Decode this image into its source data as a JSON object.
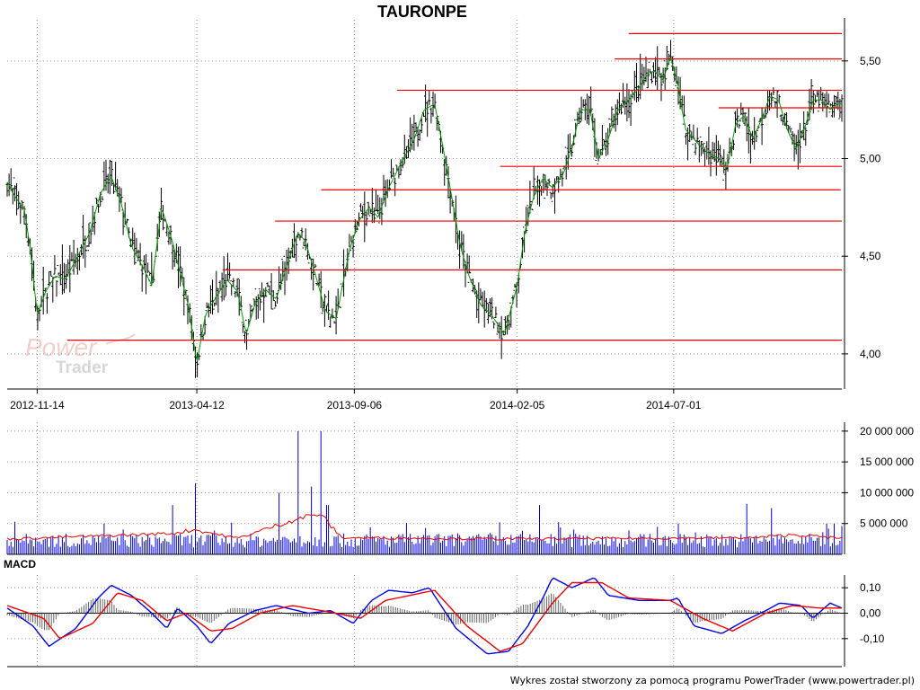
{
  "watermark": {
    "word1": "Power",
    "word2": "Trader"
  },
  "footer": "Wykres został stworzony za pomocą programu PowerTrader (www.powertrader.pl)",
  "chart_data": [
    {
      "type": "candlestick",
      "title": "TAURONPE",
      "x_tick_labels": [
        "2012-11-14",
        "2013-04-12",
        "2013-09-06",
        "2014-02-05",
        "2014-07-01"
      ],
      "x_range": [
        "2012-10-17",
        "2014-12-05"
      ],
      "y_tick_labels": [
        "4,00",
        "4,50",
        "5,00",
        "5,50"
      ],
      "y_ticks": [
        4.0,
        4.5,
        5.0,
        5.5
      ],
      "ylim": [
        3.82,
        5.72
      ],
      "grid": true,
      "close_path": [
        [
          "2012-10-17",
          4.88
        ],
        [
          "2012-10-25",
          4.8
        ],
        [
          "2012-11-02",
          4.74
        ],
        [
          "2012-11-08",
          4.52
        ],
        [
          "2012-11-14",
          4.2
        ],
        [
          "2012-11-22",
          4.32
        ],
        [
          "2012-12-01",
          4.4
        ],
        [
          "2012-12-10",
          4.38
        ],
        [
          "2012-12-20",
          4.48
        ],
        [
          "2013-01-02",
          4.62
        ],
        [
          "2013-01-12",
          4.82
        ],
        [
          "2013-01-22",
          4.91
        ],
        [
          "2013-02-01",
          4.76
        ],
        [
          "2013-02-10",
          4.55
        ],
        [
          "2013-02-20",
          4.45
        ],
        [
          "2013-03-01",
          4.35
        ],
        [
          "2013-03-10",
          4.75
        ],
        [
          "2013-03-20",
          4.58
        ],
        [
          "2013-03-28",
          4.4
        ],
        [
          "2013-04-04",
          4.25
        ],
        [
          "2013-04-12",
          3.95
        ],
        [
          "2013-04-20",
          4.2
        ],
        [
          "2013-05-01",
          4.3
        ],
        [
          "2013-05-10",
          4.38
        ],
        [
          "2013-05-20",
          4.32
        ],
        [
          "2013-05-28",
          4.1
        ],
        [
          "2013-06-05",
          4.25
        ],
        [
          "2013-06-15",
          4.33
        ],
        [
          "2013-06-25",
          4.28
        ],
        [
          "2013-07-05",
          4.45
        ],
        [
          "2013-07-15",
          4.62
        ],
        [
          "2013-07-22",
          4.58
        ],
        [
          "2013-08-01",
          4.4
        ],
        [
          "2013-08-10",
          4.22
        ],
        [
          "2013-08-20",
          4.18
        ],
        [
          "2013-09-01",
          4.52
        ],
        [
          "2013-09-10",
          4.68
        ],
        [
          "2013-09-20",
          4.75
        ],
        [
          "2013-09-28",
          4.7
        ],
        [
          "2013-10-08",
          4.85
        ],
        [
          "2013-10-20",
          4.98
        ],
        [
          "2013-11-01",
          5.1
        ],
        [
          "2013-11-10",
          5.25
        ],
        [
          "2013-11-20",
          5.28
        ],
        [
          "2013-11-28",
          5.05
        ],
        [
          "2013-12-06",
          4.8
        ],
        [
          "2013-12-14",
          4.55
        ],
        [
          "2013-12-22",
          4.4
        ],
        [
          "2014-01-02",
          4.25
        ],
        [
          "2014-01-12",
          4.2
        ],
        [
          "2014-01-24",
          4.1
        ],
        [
          "2014-02-05",
          4.35
        ],
        [
          "2014-02-12",
          4.62
        ],
        [
          "2014-02-20",
          4.8
        ],
        [
          "2014-03-01",
          4.9
        ],
        [
          "2014-03-10",
          4.85
        ],
        [
          "2014-03-20",
          4.92
        ],
        [
          "2014-03-28",
          5.05
        ],
        [
          "2014-04-05",
          5.25
        ],
        [
          "2014-04-14",
          5.25
        ],
        [
          "2014-04-22",
          5.0
        ],
        [
          "2014-05-01",
          5.1
        ],
        [
          "2014-05-10",
          5.25
        ],
        [
          "2014-05-20",
          5.3
        ],
        [
          "2014-05-28",
          5.35
        ],
        [
          "2014-06-05",
          5.42
        ],
        [
          "2014-06-13",
          5.45
        ],
        [
          "2014-06-21",
          5.4
        ],
        [
          "2014-06-28",
          5.52
        ],
        [
          "2014-07-05",
          5.38
        ],
        [
          "2014-07-12",
          5.15
        ],
        [
          "2014-07-20",
          5.1
        ],
        [
          "2014-07-28",
          5.05
        ],
        [
          "2014-08-05",
          5.02
        ],
        [
          "2014-08-12",
          5.0
        ],
        [
          "2014-08-20",
          4.95
        ],
        [
          "2014-08-28",
          5.18
        ],
        [
          "2014-09-05",
          5.22
        ],
        [
          "2014-09-13",
          5.1
        ],
        [
          "2014-09-21",
          5.2
        ],
        [
          "2014-09-29",
          5.32
        ],
        [
          "2014-10-07",
          5.3
        ],
        [
          "2014-10-15",
          5.15
        ],
        [
          "2014-10-23",
          5.05
        ],
        [
          "2014-10-31",
          5.15
        ],
        [
          "2014-11-08",
          5.3
        ],
        [
          "2014-11-16",
          5.3
        ],
        [
          "2014-11-24",
          5.25
        ],
        [
          "2014-12-01",
          5.28
        ],
        [
          "2014-12-05",
          5.28
        ]
      ],
      "support_resistance_lines": [
        {
          "from": "2012-12-12",
          "to": "2014-12-05",
          "y": 4.07
        },
        {
          "from": "2013-05-06",
          "to": "2014-12-05",
          "y": 4.43
        },
        {
          "from": "2013-06-24",
          "to": "2014-12-05",
          "y": 4.68
        },
        {
          "from": "2013-08-06",
          "to": "2014-12-04",
          "y": 4.84
        },
        {
          "from": "2013-10-16",
          "to": "2014-12-05",
          "y": 5.35
        },
        {
          "from": "2014-01-20",
          "to": "2014-12-05",
          "y": 4.96
        },
        {
          "from": "2014-05-07",
          "to": "2014-12-05",
          "y": 5.51
        },
        {
          "from": "2014-05-20",
          "to": "2014-12-05",
          "y": 5.64
        },
        {
          "from": "2014-08-12",
          "to": "2014-12-05",
          "y": 5.26
        }
      ],
      "colors": {
        "candles": "#000000",
        "close_line": "#009900",
        "levels": "#ee0000",
        "grid": "#9a9a9a"
      }
    },
    {
      "type": "bar",
      "name": "volume",
      "y_tick_labels": [
        "5 000 000",
        "10 000 000",
        "15 000 000",
        "20 000 000"
      ],
      "y_ticks": [
        5000000,
        10000000,
        15000000,
        20000000
      ],
      "ylim": [
        0,
        21000000
      ],
      "typical_volume": 2500000,
      "spikes": [
        [
          "2012-10-24",
          5300000
        ],
        [
          "2013-01-15",
          5000000
        ],
        [
          "2013-03-20",
          8000000
        ],
        [
          "2013-04-10",
          11500000
        ],
        [
          "2013-06-28",
          10000000
        ],
        [
          "2013-07-15",
          20000000
        ],
        [
          "2013-07-28",
          11000000
        ],
        [
          "2013-08-05",
          20000000
        ],
        [
          "2013-08-12",
          8000000
        ],
        [
          "2014-01-20",
          5200000
        ],
        [
          "2014-02-26",
          8000000
        ],
        [
          "2014-07-05",
          5000000
        ],
        [
          "2014-09-08",
          8200000
        ],
        [
          "2014-10-01",
          7500000
        ],
        [
          "2014-11-28",
          5000000
        ]
      ],
      "moving_average_path": [
        [
          "2012-10-17",
          2500000
        ],
        [
          "2013-01-15",
          3000000
        ],
        [
          "2013-03-20",
          3400000
        ],
        [
          "2013-04-10",
          4000000
        ],
        [
          "2013-05-20",
          2600000
        ],
        [
          "2013-07-15",
          5800000
        ],
        [
          "2013-08-05",
          6600000
        ],
        [
          "2013-08-25",
          2700000
        ],
        [
          "2014-01-20",
          2500000
        ],
        [
          "2014-06-01",
          2600000
        ],
        [
          "2014-09-15",
          2700000
        ],
        [
          "2014-10-20",
          3200000
        ],
        [
          "2014-12-05",
          2600000
        ]
      ],
      "colors": {
        "bars": "#0000dd",
        "moving_average": "#ee0000"
      }
    },
    {
      "type": "line",
      "title": "MACD",
      "y_tick_labels": [
        "0,10",
        "0,00",
        "-0,10"
      ],
      "y_ticks": [
        0.1,
        0.0,
        -0.1
      ],
      "ylim": [
        -0.21,
        0.15
      ],
      "macd": [
        [
          "2012-10-17",
          0.02
        ],
        [
          "2012-11-10",
          -0.05
        ],
        [
          "2012-11-25",
          -0.13
        ],
        [
          "2012-12-20",
          -0.06
        ],
        [
          "2013-01-10",
          0.06
        ],
        [
          "2013-01-22",
          0.11
        ],
        [
          "2013-02-10",
          0.07
        ],
        [
          "2013-03-01",
          0.0
        ],
        [
          "2013-03-15",
          -0.06
        ],
        [
          "2013-03-25",
          0.02
        ],
        [
          "2013-04-12",
          -0.05
        ],
        [
          "2013-04-25",
          -0.12
        ],
        [
          "2013-05-12",
          -0.04
        ],
        [
          "2013-06-05",
          0.01
        ],
        [
          "2013-06-25",
          0.03
        ],
        [
          "2013-07-25",
          0.0
        ],
        [
          "2013-08-15",
          0.01
        ],
        [
          "2013-09-05",
          -0.04
        ],
        [
          "2013-09-22",
          0.05
        ],
        [
          "2013-10-08",
          0.09
        ],
        [
          "2013-10-30",
          0.08
        ],
        [
          "2013-11-15",
          0.1
        ],
        [
          "2013-12-10",
          -0.06
        ],
        [
          "2014-01-08",
          -0.16
        ],
        [
          "2014-01-28",
          -0.15
        ],
        [
          "2014-02-15",
          -0.05
        ],
        [
          "2014-03-01",
          0.06
        ],
        [
          "2014-03-10",
          0.14
        ],
        [
          "2014-03-28",
          0.1
        ],
        [
          "2014-04-18",
          0.14
        ],
        [
          "2014-05-01",
          0.07
        ],
        [
          "2014-05-30",
          0.05
        ],
        [
          "2014-06-28",
          0.05
        ],
        [
          "2014-07-05",
          0.06
        ],
        [
          "2014-07-20",
          -0.05
        ],
        [
          "2014-08-15",
          -0.08
        ],
        [
          "2014-09-05",
          -0.03
        ],
        [
          "2014-09-25",
          0.01
        ],
        [
          "2014-10-08",
          0.04
        ],
        [
          "2014-10-28",
          0.03
        ],
        [
          "2014-11-08",
          -0.02
        ],
        [
          "2014-11-24",
          0.04
        ],
        [
          "2014-12-05",
          0.02
        ]
      ],
      "signal": [
        [
          "2012-10-17",
          0.03
        ],
        [
          "2012-11-20",
          -0.02
        ],
        [
          "2012-12-05",
          -0.1
        ],
        [
          "2013-01-05",
          -0.04
        ],
        [
          "2013-01-28",
          0.08
        ],
        [
          "2013-02-20",
          0.05
        ],
        [
          "2013-03-15",
          -0.03
        ],
        [
          "2013-04-02",
          0.0
        ],
        [
          "2013-04-25",
          -0.07
        ],
        [
          "2013-05-15",
          -0.06
        ],
        [
          "2013-06-10",
          0.0
        ],
        [
          "2013-07-10",
          0.03
        ],
        [
          "2013-08-20",
          0.0
        ],
        [
          "2013-09-12",
          -0.02
        ],
        [
          "2013-10-05",
          0.05
        ],
        [
          "2013-11-20",
          0.09
        ],
        [
          "2013-12-20",
          -0.05
        ],
        [
          "2014-01-20",
          -0.15
        ],
        [
          "2014-02-10",
          -0.12
        ],
        [
          "2014-03-10",
          0.04
        ],
        [
          "2014-03-28",
          0.12
        ],
        [
          "2014-04-25",
          0.12
        ],
        [
          "2014-05-20",
          0.06
        ],
        [
          "2014-06-28",
          0.05
        ],
        [
          "2014-07-28",
          -0.02
        ],
        [
          "2014-08-25",
          -0.07
        ],
        [
          "2014-09-25",
          0.0
        ],
        [
          "2014-10-20",
          0.03
        ],
        [
          "2014-11-15",
          0.02
        ],
        [
          "2014-12-05",
          0.02
        ]
      ],
      "colors": {
        "macd": "#0000ee",
        "signal": "#ee0000",
        "histogram": "#555555"
      }
    }
  ]
}
